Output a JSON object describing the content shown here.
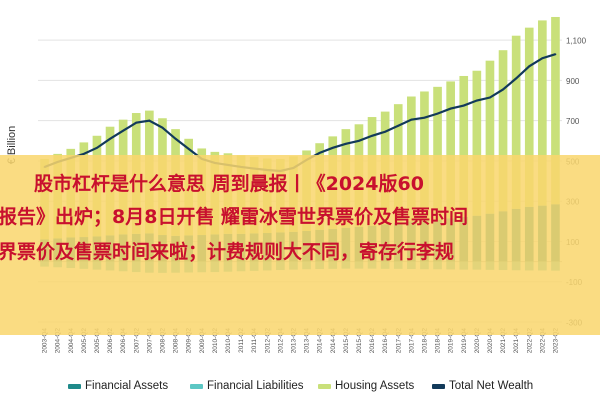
{
  "overlay": {
    "line1": "股市杠杆是什么意思 周到晨报丨《2024版60",
    "line2": "报告》出炉；8月8日开售 耀雷冰雪世界票价及售票时间",
    "line3": "界票价及售票时间来啦；计费规则大不同，寄存行李规"
  },
  "colors": {
    "financial_assets": "#1f8a8a",
    "financial_liabilities": "#5cc7c4",
    "housing_assets": "#c9e07a",
    "total_net_wealth": "#123a5a",
    "overlay_band": "#f9d66e",
    "overlay_text": "#c8102e"
  },
  "chart_data": {
    "type": "bar",
    "ylabel": "€ Billion",
    "ylim": [
      -300,
      1200
    ],
    "yticks": [
      -300,
      -100,
      100,
      300,
      500,
      700,
      900,
      1100
    ],
    "ytick_labels": [
      "-300",
      "-100",
      "100",
      "300",
      "500",
      "700",
      "900",
      "1,100"
    ],
    "grid": true,
    "legend_position": "bottom",
    "categories": [
      "2003-Q4",
      "2004-Q2",
      "2004-Q4",
      "2005-Q2",
      "2005-Q4",
      "2006-Q2",
      "2006-Q4",
      "2007-Q2",
      "2007-Q4",
      "2008-Q2",
      "2008-Q4",
      "2009-Q2",
      "2009-Q4",
      "2010-Q2",
      "2010-Q4",
      "2011-Q2",
      "2011-Q4",
      "2012-Q2",
      "2012-Q4",
      "2013-Q2",
      "2013-Q4",
      "2014-Q2",
      "2014-Q4",
      "2015-Q2",
      "2015-Q4",
      "2016-Q2",
      "2016-Q4",
      "2017-Q2",
      "2017-Q4",
      "2018-Q2",
      "2018-Q4",
      "2019-Q2",
      "2019-Q4",
      "2020-Q2",
      "2020-Q4",
      "2021-Q2",
      "2021-Q4",
      "2022-Q2",
      "2022-Q4",
      "2023-Q2"
    ],
    "series": [
      {
        "name": "Financial Assets",
        "kind": "bar",
        "values": [
          110,
          115,
          120,
          122,
          125,
          130,
          135,
          138,
          140,
          132,
          128,
          130,
          132,
          135,
          138,
          138,
          140,
          142,
          145,
          148,
          152,
          158,
          162,
          168,
          172,
          178,
          185,
          192,
          200,
          205,
          208,
          215,
          222,
          228,
          238,
          250,
          262,
          272,
          278,
          285
        ]
      },
      {
        "name": "Financial Liabilities",
        "kind": "bar",
        "values": [
          -25,
          -28,
          -32,
          -36,
          -40,
          -44,
          -48,
          -52,
          -55,
          -56,
          -55,
          -54,
          -53,
          -52,
          -50,
          -48,
          -46,
          -44,
          -42,
          -40,
          -38,
          -37,
          -36,
          -35,
          -35,
          -35,
          -36,
          -36,
          -37,
          -38,
          -38,
          -39,
          -40,
          -40,
          -41,
          -42,
          -43,
          -44,
          -44,
          -45
        ]
      },
      {
        "name": "Housing Assets",
        "kind": "bar",
        "values": [
          400,
          420,
          440,
          470,
          500,
          540,
          570,
          600,
          610,
          580,
          530,
          480,
          430,
          410,
          400,
          390,
          380,
          370,
          365,
          375,
          400,
          430,
          460,
          490,
          510,
          540,
          560,
          590,
          620,
          640,
          660,
          680,
          700,
          720,
          760,
          800,
          860,
          890,
          920,
          930
        ]
      },
      {
        "name": "Total Net Wealth",
        "kind": "line",
        "values": [
          470,
          495,
          515,
          535,
          565,
          610,
          650,
          690,
          700,
          665,
          610,
          560,
          510,
          490,
          480,
          470,
          462,
          455,
          450,
          465,
          505,
          540,
          565,
          585,
          600,
          625,
          645,
          675,
          705,
          715,
          735,
          760,
          775,
          800,
          815,
          855,
          910,
          970,
          1010,
          1030
        ]
      }
    ]
  }
}
